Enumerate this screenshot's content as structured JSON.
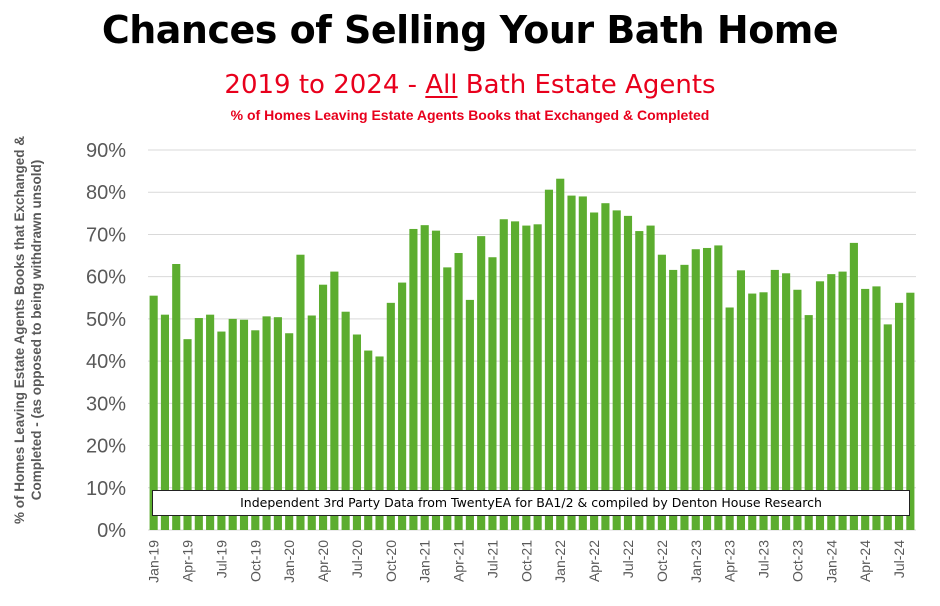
{
  "title": "Chances of Selling Your Bath Home",
  "subtitle": {
    "pre": "2019 to 2024 - ",
    "underlined": "All",
    "post": " Bath Estate Agents"
  },
  "subsubtitle": "% of Homes Leaving Estate Agents Books that Exchanged & Completed",
  "note": "Independent 3rd Party Data from TwentyEA for BA1/2 & compiled by Denton House Research",
  "colors": {
    "bar": "#5cad2f",
    "title": "#000000",
    "subtitle": "#e8001c",
    "axis_text": "#595959",
    "grid": "#d9d9d9"
  },
  "chart_data": {
    "type": "bar",
    "ylabel": "% of Homes Leaving Estate Agents Books that Exchanged & Completed - (as opposed to being withdrawn unsold)",
    "ylim": [
      0,
      90
    ],
    "yticks": [
      "0%",
      "10%",
      "20%",
      "30%",
      "40%",
      "50%",
      "60%",
      "70%",
      "80%",
      "90%"
    ],
    "grid": true,
    "xtick_labels": [
      "Jan-19",
      "Apr-19",
      "Jul-19",
      "Oct-19",
      "Jan-20",
      "Apr-20",
      "Jul-20",
      "Oct-20",
      "Jan-21",
      "Apr-21",
      "Jul-21",
      "Oct-21",
      "Jan-22",
      "Apr-22",
      "Jul-22",
      "Oct-22",
      "Jan-23",
      "Apr-23",
      "Jul-23",
      "Oct-23",
      "Jan-24",
      "Apr-24",
      "Jul-24"
    ],
    "xtick_every": 3,
    "categories": [
      "Jan-19",
      "Feb-19",
      "Mar-19",
      "Apr-19",
      "May-19",
      "Jun-19",
      "Jul-19",
      "Aug-19",
      "Sep-19",
      "Oct-19",
      "Nov-19",
      "Dec-19",
      "Jan-20",
      "Feb-20",
      "Mar-20",
      "Apr-20",
      "May-20",
      "Jun-20",
      "Jul-20",
      "Aug-20",
      "Sep-20",
      "Oct-20",
      "Nov-20",
      "Dec-20",
      "Jan-21",
      "Feb-21",
      "Mar-21",
      "Apr-21",
      "May-21",
      "Jun-21",
      "Jul-21",
      "Aug-21",
      "Sep-21",
      "Oct-21",
      "Nov-21",
      "Dec-21",
      "Jan-22",
      "Feb-22",
      "Mar-22",
      "Apr-22",
      "May-22",
      "Jun-22",
      "Jul-22",
      "Aug-22",
      "Sep-22",
      "Oct-22",
      "Nov-22",
      "Dec-22",
      "Jan-23",
      "Feb-23",
      "Mar-23",
      "Apr-23",
      "May-23",
      "Jun-23",
      "Jul-23",
      "Aug-23",
      "Sep-23",
      "Oct-23",
      "Nov-23",
      "Dec-23",
      "Jan-24",
      "Feb-24",
      "Mar-24",
      "Apr-24",
      "May-24",
      "Jun-24",
      "Jul-24",
      "Aug-24"
    ],
    "values": [
      55.5,
      51.0,
      63.0,
      45.2,
      50.2,
      51.0,
      47.0,
      50.0,
      49.8,
      47.3,
      50.6,
      50.4,
      46.6,
      65.2,
      50.8,
      58.1,
      61.2,
      51.7,
      46.3,
      42.5,
      41.1,
      53.8,
      58.6,
      71.3,
      72.2,
      70.9,
      62.2,
      65.6,
      54.5,
      69.6,
      64.6,
      73.6,
      73.1,
      72.1,
      72.4,
      80.6,
      83.2,
      79.2,
      79.0,
      75.2,
      77.4,
      75.7,
      74.4,
      70.8,
      72.1,
      65.2,
      61.6,
      62.8,
      66.5,
      66.8,
      67.4,
      52.7,
      61.5,
      56.0,
      56.3,
      61.6,
      60.8,
      56.9,
      50.9,
      58.9,
      60.6,
      61.2,
      68.0,
      57.1,
      57.7,
      48.7,
      53.8,
      56.2
    ]
  }
}
